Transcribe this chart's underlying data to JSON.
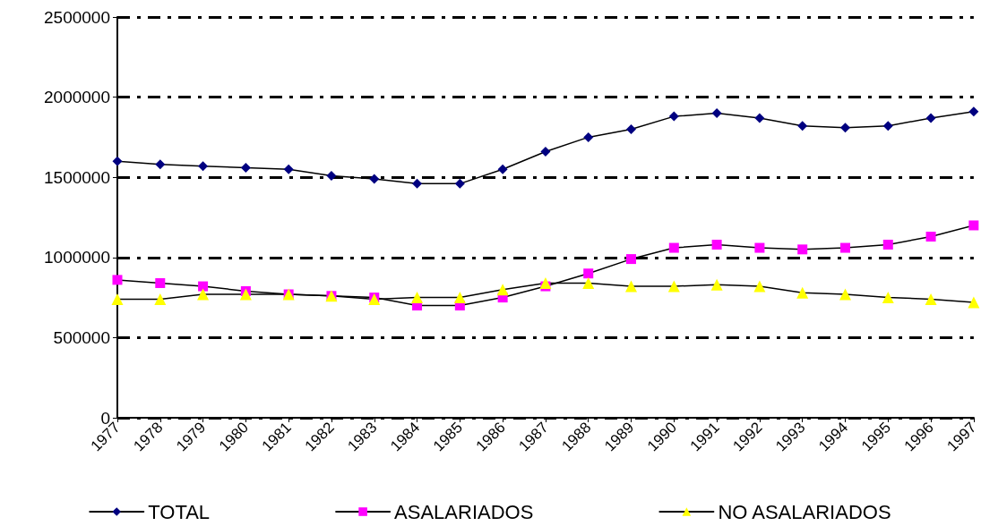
{
  "chart_data": {
    "type": "line",
    "categories": [
      "1977",
      "1978",
      "1979",
      "1980",
      "1981",
      "1982",
      "1983",
      "1984",
      "1985",
      "1986",
      "1987",
      "1988",
      "1989",
      "1990",
      "1991",
      "1992",
      "1993",
      "1994",
      "1995",
      "1996",
      "1997"
    ],
    "series": [
      {
        "name": "TOTAL",
        "color": "#000080",
        "marker": "diamond",
        "values": [
          1600000,
          1580000,
          1570000,
          1560000,
          1550000,
          1510000,
          1490000,
          1460000,
          1460000,
          1550000,
          1660000,
          1750000,
          1800000,
          1880000,
          1900000,
          1870000,
          1820000,
          1810000,
          1820000,
          1870000,
          1910000
        ]
      },
      {
        "name": "ASALARIADOS",
        "color": "#ff00ff",
        "marker": "square",
        "values": [
          860000,
          840000,
          820000,
          790000,
          770000,
          760000,
          750000,
          700000,
          700000,
          750000,
          820000,
          900000,
          990000,
          1060000,
          1080000,
          1060000,
          1050000,
          1060000,
          1080000,
          1130000,
          1200000
        ]
      },
      {
        "name": "NO ASALARIADOS",
        "color": "#ffff00",
        "marker": "triangle",
        "values": [
          740000,
          740000,
          770000,
          770000,
          770000,
          760000,
          740000,
          750000,
          750000,
          800000,
          840000,
          840000,
          820000,
          820000,
          830000,
          820000,
          780000,
          770000,
          750000,
          740000,
          720000
        ]
      }
    ],
    "ylim": [
      0,
      2500000
    ],
    "yticks": [
      0,
      500000,
      1000000,
      1500000,
      2000000,
      2500000
    ],
    "grid": "y",
    "legend": "bottom",
    "line_style": "solid"
  }
}
